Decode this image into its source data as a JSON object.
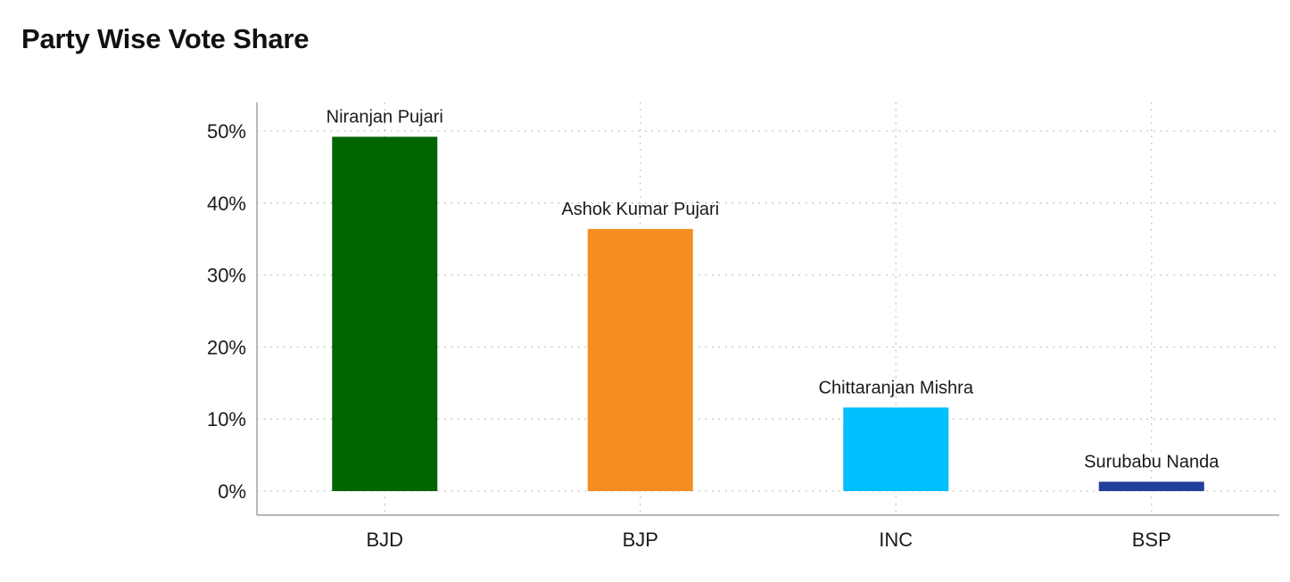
{
  "header": {
    "title": "Party Wise Vote Share"
  },
  "chart_data": {
    "type": "bar",
    "title": "Party Wise Vote Share",
    "xlabel": "",
    "ylabel": "",
    "categories": [
      "BJD",
      "BJP",
      "INC",
      "BSP"
    ],
    "values": [
      49.2,
      36.4,
      11.6,
      1.3
    ],
    "candidates": [
      "Niranjan Pujari",
      "Ashok Kumar Pujari",
      "Chittaranjan Mishra",
      "Surubabu Nanda"
    ],
    "colors": [
      "#006400",
      "#F68D21",
      "#00BFFF",
      "#22409A"
    ],
    "ylim": [
      0,
      50
    ],
    "yticks": [
      0,
      10,
      20,
      30,
      40,
      50
    ],
    "ytick_labels": [
      "0%",
      "10%",
      "20%",
      "30%",
      "40%",
      "50%"
    ],
    "grid": true,
    "legend": "none"
  }
}
